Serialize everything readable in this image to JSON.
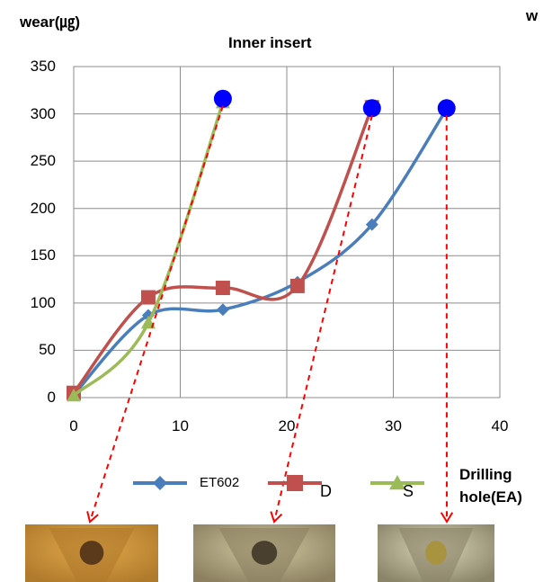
{
  "chart_data": {
    "type": "line",
    "title": "Inner insert",
    "ylabel": "wear(㎍)",
    "xlabel": "Drilling hole(EA)",
    "top_right_fragment": "w",
    "xlim": [
      0,
      40
    ],
    "ylim": [
      0,
      350
    ],
    "xticks": [
      0,
      10,
      20,
      30,
      40
    ],
    "yticks": [
      0,
      50,
      100,
      150,
      200,
      250,
      300,
      350
    ],
    "grid": true,
    "smooth": true,
    "legend_position": "bottom",
    "series": [
      {
        "name": "ET602",
        "color": "#4a7ebb",
        "marker": "diamond",
        "x": [
          0,
          7,
          14,
          21,
          28,
          35
        ],
        "y": [
          3,
          87,
          93,
          122,
          183,
          305
        ]
      },
      {
        "name": "D",
        "color": "#c0504d",
        "marker": "square",
        "x": [
          0,
          7,
          14,
          21,
          28
        ],
        "y": [
          5,
          106,
          116,
          118,
          307
        ]
      },
      {
        "name": "S",
        "color": "#9bbb59",
        "marker": "triangle",
        "x": [
          0,
          7,
          14
        ],
        "y": [
          2,
          79,
          312
        ]
      }
    ],
    "highlight_points": [
      {
        "x": 14,
        "y": 316,
        "color": "#0000ff"
      },
      {
        "x": 28,
        "y": 306,
        "color": "#0000ff"
      },
      {
        "x": 35,
        "y": 306,
        "color": "#0000ff"
      }
    ],
    "annotation_arrows_color": "#ff0000",
    "photos": [
      {
        "name": "insert-photo-1",
        "palette": [
          "#b07a2c",
          "#e0a84a",
          "#5a3a1a"
        ]
      },
      {
        "name": "insert-photo-2",
        "palette": [
          "#8c8060",
          "#cfc7a0",
          "#4a4030"
        ]
      },
      {
        "name": "insert-photo-3",
        "palette": [
          "#8a8468",
          "#d8d2b8",
          "#a89440"
        ]
      }
    ]
  }
}
